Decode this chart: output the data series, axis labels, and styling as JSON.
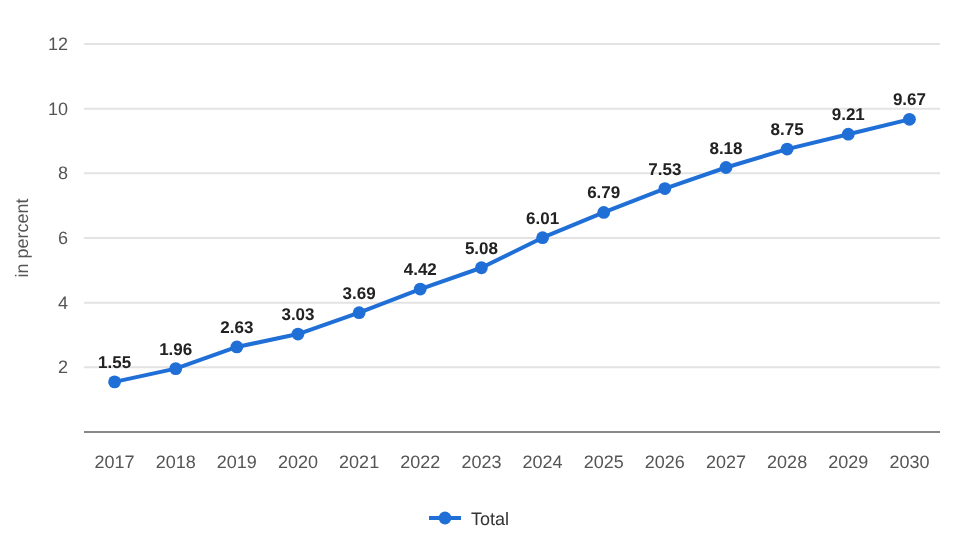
{
  "chart_data": {
    "type": "line",
    "ylabel": "in percent",
    "categories": [
      "2017",
      "2018",
      "2019",
      "2020",
      "2021",
      "2022",
      "2023",
      "2024",
      "2025",
      "2026",
      "2027",
      "2028",
      "2029",
      "2030"
    ],
    "series": [
      {
        "name": "Total",
        "color": "#1f6fd6",
        "values": [
          1.55,
          1.96,
          2.63,
          3.03,
          3.69,
          4.42,
          5.08,
          6.01,
          6.79,
          7.53,
          8.18,
          8.75,
          9.21,
          9.67
        ]
      }
    ],
    "ylim": [
      0,
      12
    ],
    "yticks": [
      2,
      4,
      6,
      8,
      10,
      12
    ],
    "grid": "y",
    "legend": "bottom",
    "marker": "circle",
    "data_labels": true
  }
}
